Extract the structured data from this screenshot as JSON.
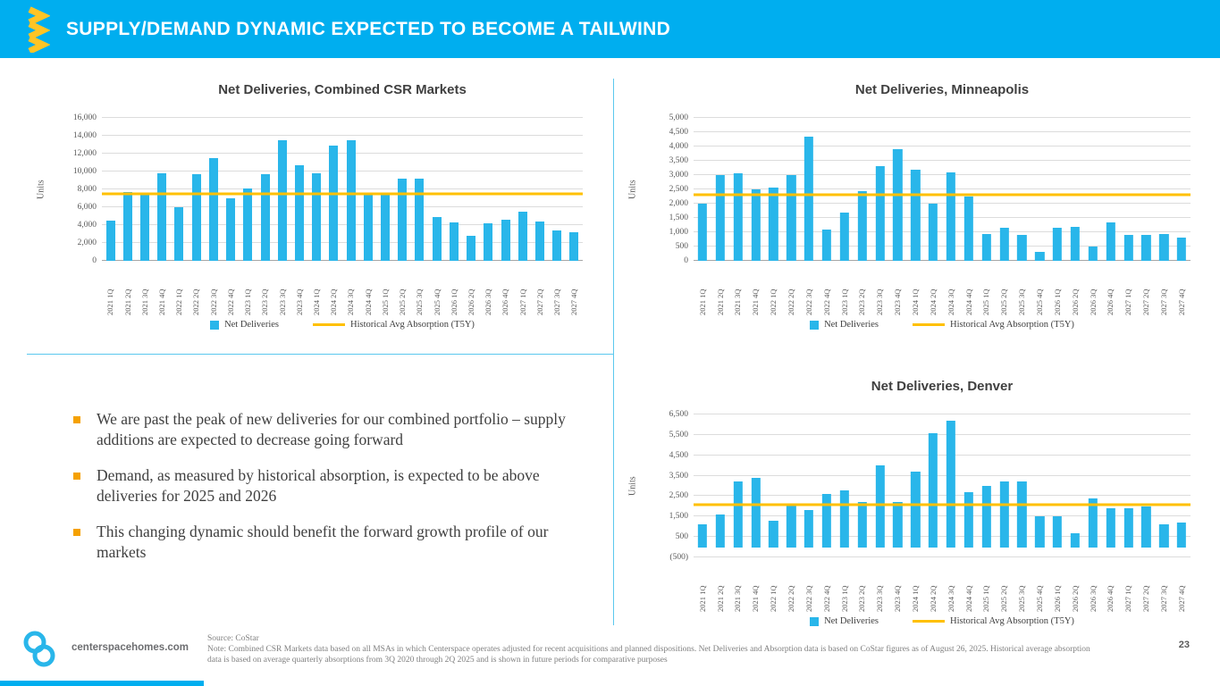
{
  "slide": {
    "title": "SUPPLY/DEMAND DYNAMIC EXPECTED TO BECOME A TAILWIND",
    "page_number": "23",
    "accent_cyan": "#00AEEF",
    "accent_yellow": "#FFC425"
  },
  "bullets": [
    "We are past the peak of new deliveries for our combined portfolio – supply additions are expected to decrease going forward",
    "Demand, as measured by historical absorption, is expected to be above deliveries for 2025 and 2026",
    "This changing dynamic should benefit the forward growth profile of our markets"
  ],
  "footer": {
    "website": "centerspacehomes.com",
    "source": "Source: CoStar",
    "note": "Note: Combined CSR Markets data based on all MSAs in which Centerspace operates adjusted for recent acquisitions and planned dispositions. Net Deliveries and Absorption data is based on CoStar figures as of August 26, 2025. Historical average absorption data is based on average quarterly absorptions from 3Q 2020 through 2Q 2025 and is shown in future periods for comparative purposes"
  },
  "chart_data": [
    {
      "type": "bar",
      "title": "Net Deliveries, Combined CSR Markets",
      "ylabel": "Units",
      "ylim": [
        0,
        16000
      ],
      "ytick_step": 2000,
      "grid": true,
      "legend_position": "bottom",
      "bar_color": "#29B6EA",
      "line_color": "#FFC000",
      "categories": [
        "2021 1Q",
        "2021 2Q",
        "2021 3Q",
        "2021 4Q",
        "2022 1Q",
        "2022 2Q",
        "2022 3Q",
        "2022 4Q",
        "2023 1Q",
        "2023 2Q",
        "2023 3Q",
        "2023 4Q",
        "2024 1Q",
        "2024 2Q",
        "2024 3Q",
        "2024 4Q",
        "2025 1Q",
        "2025 2Q",
        "2025 3Q",
        "2025 4Q",
        "2026 1Q",
        "2026 2Q",
        "2026 3Q",
        "2026 4Q",
        "2027 1Q",
        "2027 2Q",
        "2027 3Q",
        "2027 4Q"
      ],
      "series": [
        {
          "name": "Net Deliveries",
          "values": [
            4500,
            7700,
            7400,
            9800,
            6000,
            9700,
            11500,
            7000,
            8100,
            9700,
            13500,
            10700,
            9800,
            12900,
            13500,
            7400,
            7600,
            9200,
            9200,
            4900,
            4300,
            2800,
            4200,
            4600,
            5500,
            4400,
            3400,
            3200
          ]
        }
      ],
      "avg_line": {
        "label": "Historical Avg Absorption (T5Y)",
        "value": 7500
      },
      "legend": [
        {
          "label": "Net Deliveries",
          "type": "square"
        },
        {
          "label": "Historical Avg Absorption (T5Y)",
          "type": "line"
        }
      ]
    },
    {
      "type": "bar",
      "title": "Net Deliveries, Minneapolis",
      "ylabel": "Units",
      "ylim": [
        0,
        5000
      ],
      "ytick_step": 500,
      "grid": true,
      "legend_position": "bottom",
      "bar_color": "#29B6EA",
      "line_color": "#FFC000",
      "categories": [
        "2021 1Q",
        "2021 2Q",
        "2021 3Q",
        "2021 4Q",
        "2022 1Q",
        "2022 2Q",
        "2022 3Q",
        "2022 4Q",
        "2023 1Q",
        "2023 2Q",
        "2023 3Q",
        "2023 4Q",
        "2024 1Q",
        "2024 2Q",
        "2024 3Q",
        "2024 4Q",
        "2025 1Q",
        "2025 2Q",
        "2025 3Q",
        "2025 4Q",
        "2026 1Q",
        "2026 2Q",
        "2026 3Q",
        "2026 4Q",
        "2027 1Q",
        "2027 2Q",
        "2027 3Q",
        "2027 4Q"
      ],
      "series": [
        {
          "name": "Net Deliveries",
          "values": [
            2000,
            3000,
            3050,
            2500,
            2550,
            3000,
            4350,
            1100,
            1700,
            2450,
            3300,
            3900,
            3200,
            2000,
            3100,
            2250,
            950,
            1150,
            900,
            300,
            1150,
            1200,
            500,
            1350,
            900,
            900,
            950,
            800
          ]
        }
      ],
      "avg_line": {
        "label": "Historical Avg Absorption (T5Y)",
        "value": 2300
      },
      "legend": [
        {
          "label": "Net Deliveries",
          "type": "square"
        },
        {
          "label": "Historical Avg Absorption (T5Y)",
          "type": "line"
        }
      ]
    },
    {
      "type": "bar",
      "title": "Net Deliveries, Denver",
      "ylabel": "Units",
      "ylim": [
        -500,
        6500
      ],
      "ytick_step": 1000,
      "grid": true,
      "legend_position": "bottom",
      "bar_color": "#29B6EA",
      "line_color": "#FFC000",
      "categories": [
        "2021 1Q",
        "2021 2Q",
        "2021 3Q",
        "2021 4Q",
        "2022 1Q",
        "2022 2Q",
        "2022 3Q",
        "2022 4Q",
        "2023 1Q",
        "2023 2Q",
        "2023 3Q",
        "2023 4Q",
        "2024 1Q",
        "2024 2Q",
        "2024 3Q",
        "2024 4Q",
        "2025 1Q",
        "2025 2Q",
        "2025 3Q",
        "2025 4Q",
        "2026 1Q",
        "2026 2Q",
        "2026 3Q",
        "2026 4Q",
        "2027 1Q",
        "2027 2Q",
        "2027 3Q",
        "2027 4Q"
      ],
      "series": [
        {
          "name": "Net Deliveries",
          "values": [
            1100,
            1600,
            3200,
            3400,
            1300,
            2100,
            1800,
            2600,
            2800,
            2200,
            4000,
            2200,
            3700,
            5600,
            6200,
            2700,
            3000,
            3200,
            3200,
            1500,
            1500,
            700,
            2400,
            1900,
            1900,
            2000,
            1100,
            1200
          ]
        }
      ],
      "avg_line": {
        "label": "Historical Avg Absorption (T5Y)",
        "value": 2100
      },
      "legend": [
        {
          "label": "Net Deliveries",
          "type": "square"
        },
        {
          "label": "Historical Avg Absorption (T5Y)",
          "type": "line"
        }
      ]
    }
  ]
}
